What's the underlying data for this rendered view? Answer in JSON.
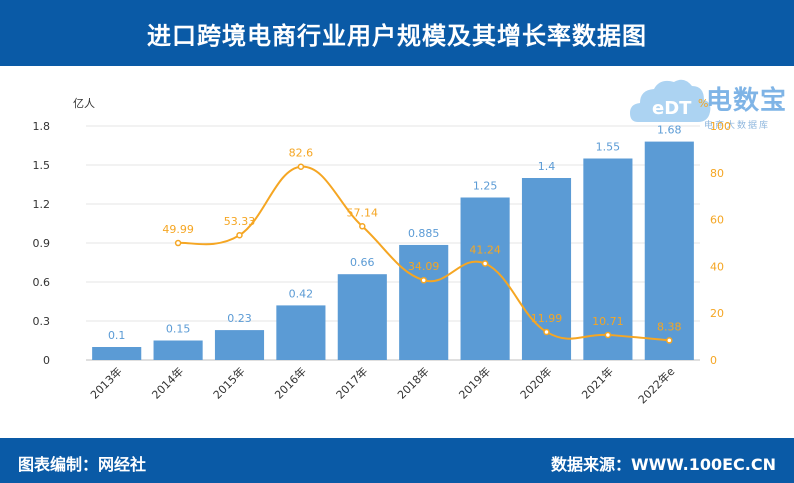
{
  "header": {
    "title": "进口跨境电商行业用户规模及其增长率数据图"
  },
  "footer": {
    "left_label": "图表编制：",
    "left_value": "网经社",
    "right_label": "数据来源：",
    "right_value": "WWW.100EC.CN"
  },
  "logo": {
    "text": "电数宝",
    "sub": "电商大数据库",
    "badge": "eDT"
  },
  "colors": {
    "header_bg": "#0a5aa6",
    "bar": "#5b9bd5",
    "line": "#f5a623",
    "bar_label": "#5b9bd5",
    "line_label": "#f5a623"
  },
  "chart_data": {
    "type": "bar",
    "categories": [
      "2013年",
      "2014年",
      "2015年",
      "2016年",
      "2017年",
      "2018年",
      "2019年",
      "2020年",
      "2021年",
      "2022年e"
    ],
    "series": [
      {
        "type": "bar",
        "axis": "left",
        "values": [
          0.1,
          0.15,
          0.23,
          0.42,
          0.66,
          0.885,
          1.25,
          1.4,
          1.55,
          1.68
        ],
        "labels": [
          "0.1",
          "0.15",
          "0.23",
          "0.42",
          "0.66",
          "0.885",
          "1.25",
          "1.4",
          "1.55",
          "1.68"
        ]
      },
      {
        "type": "line",
        "axis": "right",
        "values": [
          null,
          49.99,
          53.33,
          82.6,
          57.14,
          34.09,
          41.24,
          11.99,
          10.71,
          8.38
        ],
        "labels": [
          "",
          "49.99",
          "53.33",
          "82.6",
          "57.14",
          "34.09",
          "41.24",
          "11.99",
          "10.71",
          "8.38"
        ]
      }
    ],
    "ylabel_left": "亿人",
    "ylabel_right": "%",
    "ylim_left": [
      0,
      1.8
    ],
    "yticks_left": [
      "0",
      "0.3",
      "0.6",
      "0.9",
      "1.2",
      "1.5",
      "1.8"
    ],
    "ylim_right": [
      0,
      100
    ],
    "yticks_right": [
      "0",
      "20",
      "40",
      "60",
      "80",
      "100"
    ],
    "grid": true
  }
}
